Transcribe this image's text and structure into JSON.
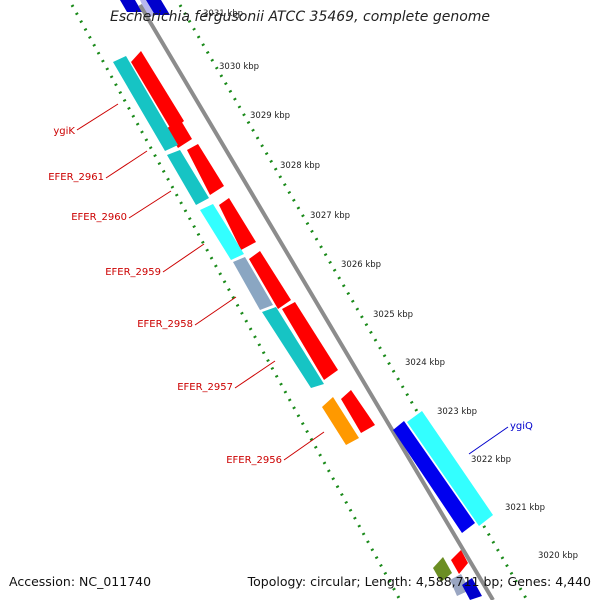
{
  "title": "Escherichia fergusonii ATCC 35469, complete genome",
  "footer": {
    "accession": "Accession: NC_011740",
    "summary": "Topology: circular; Length: 4,588,711 bp; Genes: 4,440"
  },
  "colors": {
    "backbone": "#8c8c8c",
    "ruler_dots": "#1a8a1a",
    "forward_cds": "#ff0000",
    "reverse_cds": "#16c4c4",
    "reverse_cds_light": "#33ffff",
    "reverse_cds_grey": "#8aa6c2",
    "blue_cds": "#0000ee",
    "orange_cds": "#ff9900",
    "olive_cds": "#6b8e23",
    "label_red": "#cc0000",
    "label_blue": "#0000cc"
  },
  "ruler": {
    "ticks": [
      "3030 kbp",
      "3029 kbp",
      "3028 kbp",
      "3027 kbp",
      "3026 kbp",
      "3025 kbp",
      "3024 kbp",
      "3023 kbp",
      "3022 kbp",
      "3021 kbp",
      "3020 kbp"
    ],
    "faded_tick": "3031 kbp"
  },
  "gene_labels": [
    {
      "name": "ygiK",
      "color": "red"
    },
    {
      "name": "EFER_2961",
      "color": "red"
    },
    {
      "name": "EFER_2960",
      "color": "red"
    },
    {
      "name": "EFER_2959",
      "color": "red"
    },
    {
      "name": "EFER_2958",
      "color": "red"
    },
    {
      "name": "EFER_2957",
      "color": "red"
    },
    {
      "name": "EFER_2956",
      "color": "red"
    },
    {
      "name": "ygiQ",
      "color": "blue"
    }
  ]
}
